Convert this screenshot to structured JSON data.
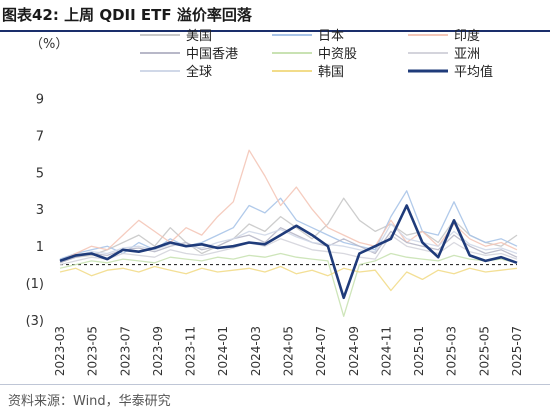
{
  "figure": {
    "title": "图表42:   上周 QDII ETF 溢价率回落",
    "source": "资料来源：Wind，华泰研究"
  },
  "chart_data": {
    "type": "line",
    "unit_label": "（%）",
    "ylim": [
      -3,
      10
    ],
    "yticks": [
      9,
      7,
      5,
      3,
      1,
      -1,
      -3
    ],
    "ytick_labels": [
      "9",
      "7",
      "5",
      "3",
      "1",
      "(1)",
      "(3)"
    ],
    "x_tick_labels": [
      "2023-03",
      "2023-05",
      "2023-07",
      "2023-09",
      "2023-11",
      "2024-01",
      "2024-03",
      "2024-05",
      "2024-07",
      "2024-09",
      "2024-11",
      "2025-01",
      "2025-03",
      "2025-05",
      "2025-07"
    ],
    "x_range": [
      "2023-03",
      "2025-09"
    ],
    "zero_line": true,
    "legend_position": "top",
    "series": [
      {
        "name": "美国",
        "color": "#c8c8c8",
        "values": [
          [
            0,
            0.2
          ],
          [
            1,
            0.4
          ],
          [
            2,
            0.5
          ],
          [
            3,
            0.8
          ],
          [
            4,
            1.2
          ],
          [
            5,
            1.6
          ],
          [
            6,
            1.0
          ],
          [
            7,
            2.0
          ],
          [
            8,
            1.2
          ],
          [
            9,
            0.6
          ],
          [
            10,
            1.0
          ],
          [
            11,
            1.4
          ],
          [
            12,
            2.2
          ],
          [
            13,
            1.8
          ],
          [
            14,
            2.6
          ],
          [
            15,
            2.0
          ],
          [
            16,
            1.4
          ],
          [
            17,
            2.2
          ],
          [
            18,
            3.6
          ],
          [
            19,
            2.4
          ],
          [
            20,
            1.8
          ],
          [
            21,
            2.2
          ],
          [
            22,
            1.6
          ],
          [
            23,
            1.8
          ],
          [
            24,
            1.2
          ],
          [
            25,
            2.4
          ],
          [
            26,
            1.6
          ],
          [
            27,
            1.2
          ],
          [
            28,
            1.0
          ],
          [
            29,
            1.6
          ]
        ]
      },
      {
        "name": "日本",
        "color": "#a9c4e8",
        "values": [
          [
            0,
            0.3
          ],
          [
            1,
            0.6
          ],
          [
            2,
            0.8
          ],
          [
            3,
            1.0
          ],
          [
            4,
            0.6
          ],
          [
            5,
            1.2
          ],
          [
            6,
            0.8
          ],
          [
            7,
            1.4
          ],
          [
            8,
            1.0
          ],
          [
            9,
            1.2
          ],
          [
            10,
            1.6
          ],
          [
            11,
            2.0
          ],
          [
            12,
            3.2
          ],
          [
            13,
            2.8
          ],
          [
            14,
            3.6
          ],
          [
            15,
            2.4
          ],
          [
            16,
            2.0
          ],
          [
            17,
            1.6
          ],
          [
            18,
            1.2
          ],
          [
            19,
            1.0
          ],
          [
            20,
            0.8
          ],
          [
            21,
            2.6
          ],
          [
            22,
            4.0
          ],
          [
            23,
            1.8
          ],
          [
            24,
            1.6
          ],
          [
            25,
            3.4
          ],
          [
            26,
            1.6
          ],
          [
            27,
            1.2
          ],
          [
            28,
            1.4
          ],
          [
            29,
            1.0
          ]
        ]
      },
      {
        "name": "印度",
        "color": "#f4c7b8",
        "values": [
          [
            0,
            0.2
          ],
          [
            1,
            0.6
          ],
          [
            2,
            1.0
          ],
          [
            3,
            0.8
          ],
          [
            4,
            1.6
          ],
          [
            5,
            2.4
          ],
          [
            6,
            1.8
          ],
          [
            7,
            1.2
          ],
          [
            8,
            2.0
          ],
          [
            9,
            1.6
          ],
          [
            10,
            2.6
          ],
          [
            11,
            3.4
          ],
          [
            12,
            6.2
          ],
          [
            13,
            4.8
          ],
          [
            14,
            3.2
          ],
          [
            15,
            4.2
          ],
          [
            16,
            3.0
          ],
          [
            17,
            2.0
          ],
          [
            18,
            1.6
          ],
          [
            19,
            1.2
          ],
          [
            20,
            1.0
          ],
          [
            21,
            2.4
          ],
          [
            22,
            1.2
          ],
          [
            23,
            1.8
          ],
          [
            24,
            1.0
          ],
          [
            25,
            2.2
          ],
          [
            26,
            1.4
          ],
          [
            27,
            1.0
          ],
          [
            28,
            1.2
          ],
          [
            29,
            0.8
          ]
        ]
      },
      {
        "name": "中国香港",
        "color": "#b8b8c8",
        "values": [
          [
            0,
            0.1
          ],
          [
            1,
            0.4
          ],
          [
            2,
            0.6
          ],
          [
            3,
            0.5
          ],
          [
            4,
            0.8
          ],
          [
            5,
            0.9
          ],
          [
            6,
            0.7
          ],
          [
            7,
            1.0
          ],
          [
            8,
            1.2
          ],
          [
            9,
            0.8
          ],
          [
            10,
            1.0
          ],
          [
            11,
            1.4
          ],
          [
            12,
            1.6
          ],
          [
            13,
            1.2
          ],
          [
            14,
            2.0
          ],
          [
            15,
            1.6
          ],
          [
            16,
            1.2
          ],
          [
            17,
            1.0
          ],
          [
            18,
            1.4
          ],
          [
            19,
            1.0
          ],
          [
            20,
            0.6
          ],
          [
            21,
            1.8
          ],
          [
            22,
            1.2
          ],
          [
            23,
            1.0
          ],
          [
            24,
            0.8
          ],
          [
            25,
            1.6
          ],
          [
            26,
            1.0
          ],
          [
            27,
            0.6
          ],
          [
            28,
            0.8
          ],
          [
            29,
            0.4
          ]
        ]
      },
      {
        "name": "中资股",
        "color": "#c9e2b3",
        "values": [
          [
            0,
            -0.2
          ],
          [
            1,
            0.0
          ],
          [
            2,
            0.2
          ],
          [
            3,
            0.1
          ],
          [
            4,
            0.3
          ],
          [
            5,
            0.2
          ],
          [
            6,
            0.1
          ],
          [
            7,
            0.4
          ],
          [
            8,
            0.3
          ],
          [
            9,
            0.2
          ],
          [
            10,
            0.4
          ],
          [
            11,
            0.3
          ],
          [
            12,
            0.5
          ],
          [
            13,
            0.4
          ],
          [
            14,
            0.6
          ],
          [
            15,
            0.4
          ],
          [
            16,
            0.3
          ],
          [
            17,
            0.2
          ],
          [
            18,
            -2.8
          ],
          [
            19,
            0.0
          ],
          [
            20,
            0.2
          ],
          [
            21,
            0.6
          ],
          [
            22,
            0.4
          ],
          [
            23,
            0.3
          ],
          [
            24,
            0.2
          ],
          [
            25,
            0.5
          ],
          [
            26,
            0.3
          ],
          [
            27,
            0.2
          ],
          [
            28,
            0.3
          ],
          [
            29,
            0.1
          ]
        ]
      },
      {
        "name": "亚洲",
        "color": "#d4d4dc",
        "values": [
          [
            0,
            0.0
          ],
          [
            1,
            0.2
          ],
          [
            2,
            0.4
          ],
          [
            3,
            0.3
          ],
          [
            4,
            0.6
          ],
          [
            5,
            0.5
          ],
          [
            6,
            0.4
          ],
          [
            7,
            0.8
          ],
          [
            8,
            0.6
          ],
          [
            9,
            0.5
          ],
          [
            10,
            0.7
          ],
          [
            11,
            0.9
          ],
          [
            12,
            1.2
          ],
          [
            13,
            1.0
          ],
          [
            14,
            1.4
          ],
          [
            15,
            1.1
          ],
          [
            16,
            0.8
          ],
          [
            17,
            0.7
          ],
          [
            18,
            0.6
          ],
          [
            19,
            0.4
          ],
          [
            20,
            0.3
          ],
          [
            21,
            1.6
          ],
          [
            22,
            1.0
          ],
          [
            23,
            0.8
          ],
          [
            24,
            0.6
          ],
          [
            25,
            1.2
          ],
          [
            26,
            0.7
          ],
          [
            27,
            0.5
          ],
          [
            28,
            0.6
          ],
          [
            29,
            0.3
          ]
        ]
      },
      {
        "name": "全球",
        "color": "#d0d8e8",
        "values": [
          [
            0,
            0.2
          ],
          [
            1,
            0.5
          ],
          [
            2,
            0.7
          ],
          [
            3,
            0.6
          ],
          [
            4,
            0.9
          ],
          [
            5,
            1.0
          ],
          [
            6,
            0.8
          ],
          [
            7,
            1.1
          ],
          [
            8,
            1.0
          ],
          [
            9,
            0.9
          ],
          [
            10,
            1.2
          ],
          [
            11,
            1.4
          ],
          [
            12,
            1.8
          ],
          [
            13,
            1.6
          ],
          [
            14,
            1.9
          ],
          [
            15,
            1.5
          ],
          [
            16,
            1.2
          ],
          [
            17,
            1.1
          ],
          [
            18,
            1.0
          ],
          [
            19,
            0.8
          ],
          [
            20,
            0.7
          ],
          [
            21,
            2.2
          ],
          [
            22,
            1.4
          ],
          [
            23,
            1.2
          ],
          [
            24,
            1.0
          ],
          [
            25,
            1.8
          ],
          [
            26,
            1.1
          ],
          [
            27,
            0.8
          ],
          [
            28,
            0.9
          ],
          [
            29,
            0.6
          ]
        ]
      },
      {
        "name": "韩国",
        "color": "#f2dc8a",
        "values": [
          [
            0,
            -0.4
          ],
          [
            1,
            -0.2
          ],
          [
            2,
            -0.6
          ],
          [
            3,
            -0.3
          ],
          [
            4,
            -0.2
          ],
          [
            5,
            -0.4
          ],
          [
            6,
            -0.1
          ],
          [
            7,
            -0.3
          ],
          [
            8,
            -0.5
          ],
          [
            9,
            -0.2
          ],
          [
            10,
            -0.4
          ],
          [
            11,
            -0.3
          ],
          [
            12,
            -0.2
          ],
          [
            13,
            -0.4
          ],
          [
            14,
            -0.1
          ],
          [
            15,
            -0.5
          ],
          [
            16,
            -0.3
          ],
          [
            17,
            -0.6
          ],
          [
            18,
            -0.2
          ],
          [
            19,
            -0.4
          ],
          [
            20,
            -0.3
          ],
          [
            21,
            -1.4
          ],
          [
            22,
            -0.4
          ],
          [
            23,
            -0.8
          ],
          [
            24,
            -0.3
          ],
          [
            25,
            -0.5
          ],
          [
            26,
            -0.2
          ],
          [
            27,
            -0.4
          ],
          [
            28,
            -0.3
          ],
          [
            29,
            -0.2
          ]
        ]
      },
      {
        "name": "平均值",
        "color": "#1f3b7a",
        "emphasis": true,
        "values": [
          [
            0,
            0.2
          ],
          [
            1,
            0.5
          ],
          [
            2,
            0.6
          ],
          [
            3,
            0.3
          ],
          [
            4,
            0.8
          ],
          [
            5,
            0.7
          ],
          [
            6,
            0.9
          ],
          [
            7,
            1.2
          ],
          [
            8,
            1.0
          ],
          [
            9,
            1.1
          ],
          [
            10,
            0.9
          ],
          [
            11,
            1.0
          ],
          [
            12,
            1.2
          ],
          [
            13,
            1.1
          ],
          [
            14,
            1.6
          ],
          [
            15,
            2.1
          ],
          [
            16,
            1.6
          ],
          [
            17,
            1.0
          ],
          [
            18,
            -1.8
          ],
          [
            19,
            0.6
          ],
          [
            20,
            1.0
          ],
          [
            21,
            1.4
          ],
          [
            22,
            3.2
          ],
          [
            23,
            1.2
          ],
          [
            24,
            0.4
          ],
          [
            25,
            2.4
          ],
          [
            26,
            0.5
          ],
          [
            27,
            0.2
          ],
          [
            28,
            0.4
          ],
          [
            29,
            0.1
          ]
        ]
      }
    ]
  }
}
